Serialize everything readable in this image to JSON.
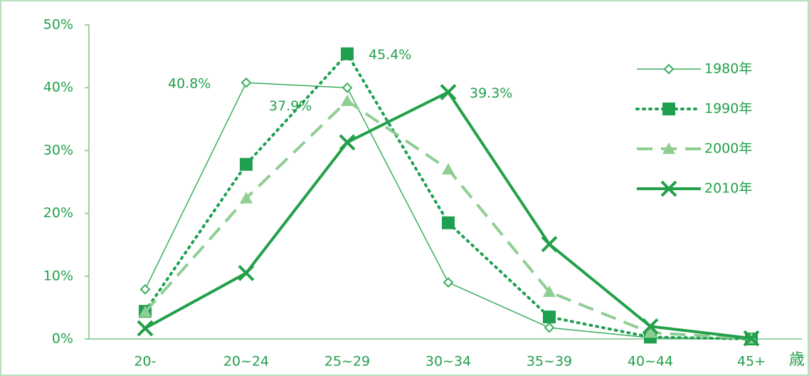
{
  "chart_data": {
    "type": "line",
    "categories": [
      "20-",
      "20~24",
      "25~29",
      "30~34",
      "35~39",
      "40~44",
      "45+"
    ],
    "x_axis_label": "歳",
    "ylim": [
      0,
      50
    ],
    "yticks": [
      {
        "value": 0,
        "label": "0%"
      },
      {
        "value": 10,
        "label": "10%"
      },
      {
        "value": 20,
        "label": "20%"
      },
      {
        "value": 30,
        "label": "30%"
      },
      {
        "value": 40,
        "label": "40%"
      },
      {
        "value": 50,
        "label": "50%"
      }
    ],
    "grid": false,
    "legend": "right",
    "series": [
      {
        "name": "1980年",
        "color": "#3aae5e",
        "line_style": "solid",
        "width": 1.5,
        "marker": "diamond",
        "values": [
          7.9,
          40.8,
          40.0,
          9.0,
          1.8,
          0.2,
          0
        ],
        "value_labels": [
          null,
          "40.8%",
          null,
          null,
          null,
          null,
          null
        ]
      },
      {
        "name": "1990年",
        "color": "#1fa050",
        "line_style": "dotted",
        "width": 4,
        "marker": "square",
        "values": [
          4.4,
          27.8,
          45.4,
          18.5,
          3.5,
          0.3,
          0
        ],
        "value_labels": [
          null,
          null,
          "45.4%",
          null,
          null,
          null,
          null
        ]
      },
      {
        "name": "2000年",
        "color": "#8fce93",
        "line_style": "dashed",
        "width": 4,
        "marker": "triangle",
        "values": [
          4.3,
          22.4,
          37.9,
          27.0,
          7.5,
          1.0,
          0.1
        ],
        "value_labels": [
          null,
          null,
          "37.9%",
          null,
          null,
          null,
          null
        ]
      },
      {
        "name": "2010年",
        "color": "#22a04a",
        "line_style": "solid",
        "width": 4,
        "marker": "x",
        "values": [
          1.7,
          10.5,
          31.3,
          39.3,
          15.1,
          2.0,
          0.1
        ],
        "value_labels": [
          null,
          null,
          null,
          "39.3%",
          null,
          null,
          null
        ]
      }
    ]
  }
}
